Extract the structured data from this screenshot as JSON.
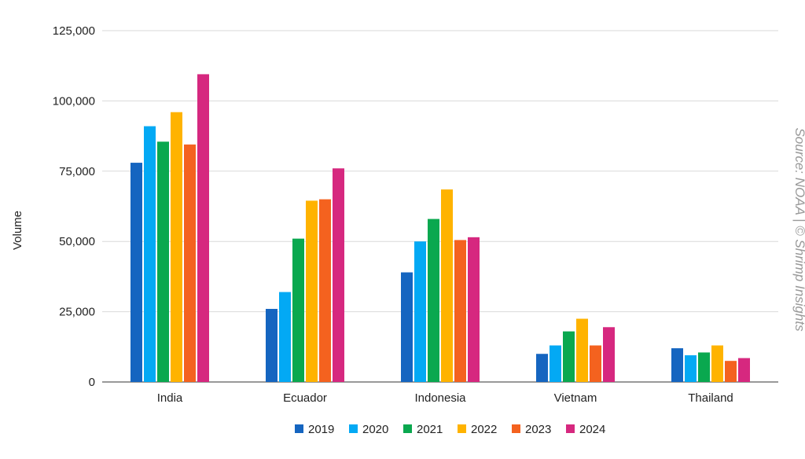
{
  "chart_data": {
    "type": "bar",
    "categories": [
      "India",
      "Ecuador",
      "Indonesia",
      "Vietnam",
      "Thailand"
    ],
    "series": [
      {
        "name": "2019",
        "color": "#1565c0",
        "values": [
          78000,
          26000,
          39000,
          10000,
          12000
        ]
      },
      {
        "name": "2020",
        "color": "#03a9f4",
        "values": [
          91000,
          32000,
          50000,
          13000,
          9500
        ]
      },
      {
        "name": "2021",
        "color": "#0aa84f",
        "values": [
          85500,
          51000,
          58000,
          18000,
          10500
        ]
      },
      {
        "name": "2022",
        "color": "#ffb300",
        "values": [
          96000,
          64500,
          68500,
          22500,
          13000
        ]
      },
      {
        "name": "2023",
        "color": "#f4621f",
        "values": [
          84500,
          65000,
          50500,
          13000,
          7500
        ]
      },
      {
        "name": "2024",
        "color": "#d6287f",
        "values": [
          109500,
          76000,
          51500,
          19500,
          8500
        ]
      }
    ],
    "ylabel": "Volume",
    "xlabel": "",
    "ylim": [
      0,
      125000
    ],
    "yticks": [
      "0",
      "25,000",
      "50,000",
      "75,000",
      "100,000",
      "125,000"
    ],
    "grid": true,
    "legend_position": "bottom"
  },
  "source_note": "Source: NOAA | © Shrimp Insights"
}
